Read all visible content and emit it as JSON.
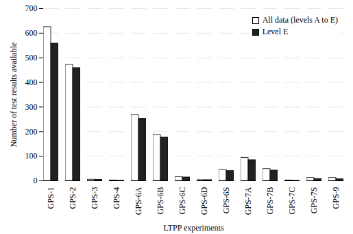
{
  "chart_data": {
    "type": "bar",
    "categories": [
      "GPS-1",
      "GPS-2",
      "GPS-3",
      "GPS-4",
      "GPS-6A",
      "GPS-6B",
      "GPS-6C",
      "GPS-6D",
      "GPS-6S",
      "GPS-7A",
      "GPS-7B",
      "GPS-7C",
      "GPS-7S",
      "GPS-9"
    ],
    "series": [
      {
        "name": "All data (levels A to E)",
        "color": "#ffffff",
        "values": [
          625,
          472,
          5,
          2,
          268,
          187,
          15,
          3,
          45,
          93,
          48,
          2,
          12,
          12
        ]
      },
      {
        "name": "Level E",
        "color": "#222222",
        "values": [
          558,
          458,
          4,
          1,
          252,
          176,
          14,
          3,
          40,
          84,
          42,
          1,
          8,
          7
        ]
      }
    ],
    "xlabel": "LTPP experiments",
    "ylabel": "Number of test results available",
    "ylim": [
      0,
      700
    ],
    "yticks": [
      0,
      100,
      200,
      300,
      400,
      500,
      600,
      700
    ],
    "grid": true,
    "legend": "top-right"
  }
}
